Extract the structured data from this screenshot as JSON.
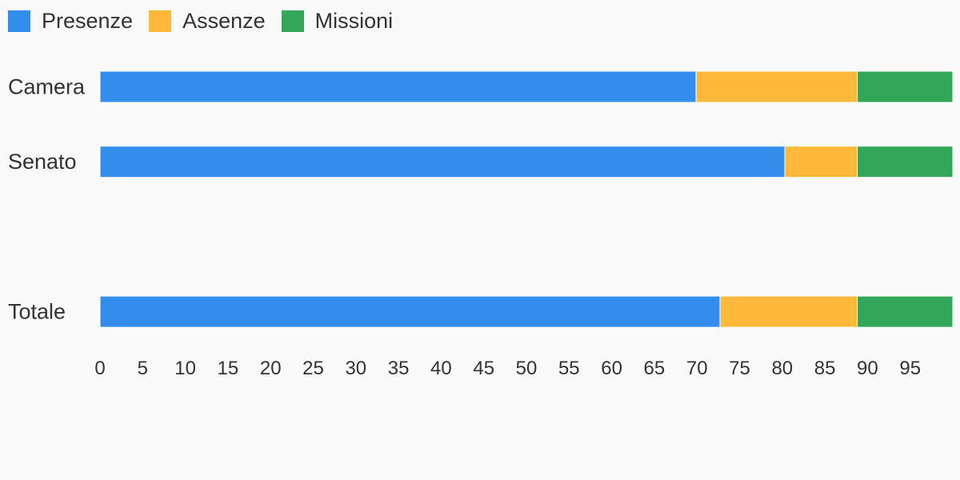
{
  "chart_data": {
    "type": "bar",
    "orientation": "horizontal",
    "stacked": true,
    "categories": [
      "Camera",
      "Senato",
      "",
      "Totale"
    ],
    "series": [
      {
        "name": "Presenze",
        "color": "#338ded",
        "values": [
          69.9,
          80.3,
          null,
          72.7
        ]
      },
      {
        "name": "Assenze",
        "color": "#ffb839",
        "values": [
          18.9,
          8.5,
          null,
          16.1
        ]
      },
      {
        "name": "Missioni",
        "color": "#33a65a",
        "values": [
          11.2,
          11.2,
          null,
          11.2
        ]
      }
    ],
    "x_ticks": [
      "0",
      "5",
      "10",
      "15",
      "20",
      "25",
      "30",
      "35",
      "40",
      "45",
      "50",
      "55",
      "60",
      "65",
      "70",
      "75",
      "80",
      "85",
      "90",
      "95"
    ],
    "xlim": [
      0,
      100
    ],
    "grid": false,
    "legend_position": "top-left",
    "title": "",
    "xlabel": "",
    "ylabel": ""
  }
}
